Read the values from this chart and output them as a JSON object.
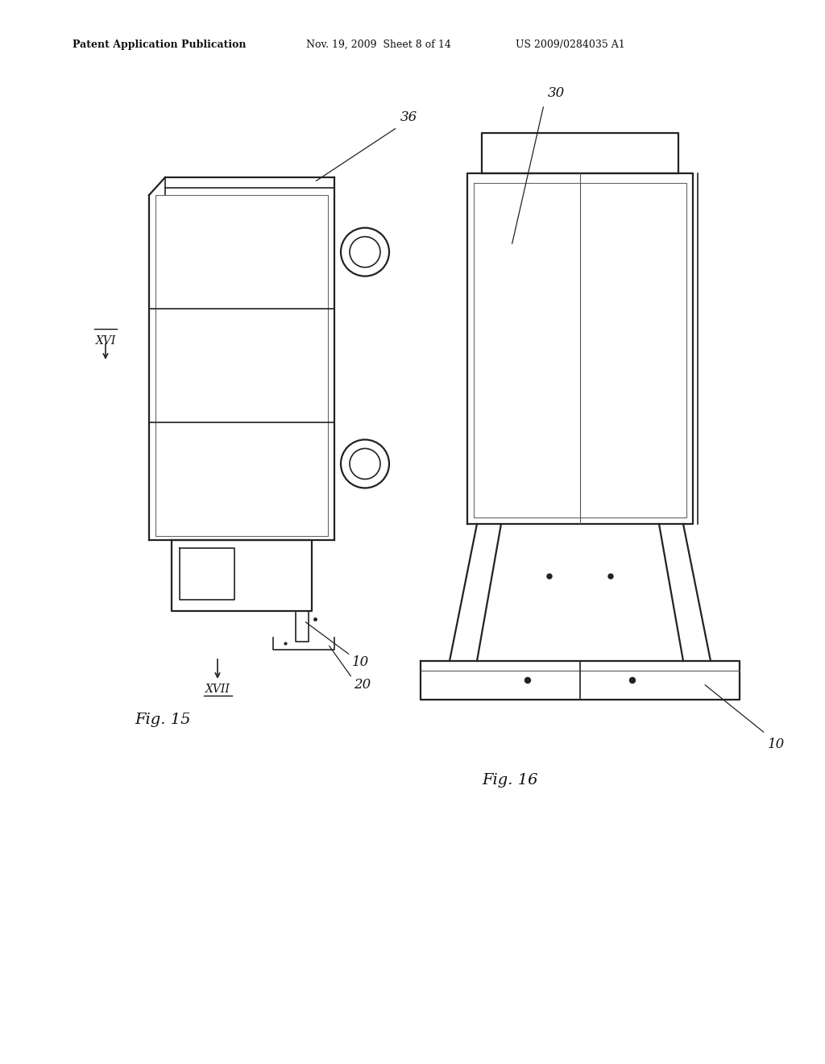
{
  "background_color": "#ffffff",
  "header_text_1": "Patent Application Publication",
  "header_text_2": "Nov. 19, 2009  Sheet 8 of 14",
  "header_text_3": "US 2009/0284035 A1",
  "fig15_label": "Fig. 15",
  "fig16_label": "Fig. 16",
  "ref_36": "36",
  "ref_30": "30",
  "ref_10_left": "10",
  "ref_20": "20",
  "ref_10_right": "10",
  "xvi_label": "XVI",
  "xvii_label": "XVII"
}
